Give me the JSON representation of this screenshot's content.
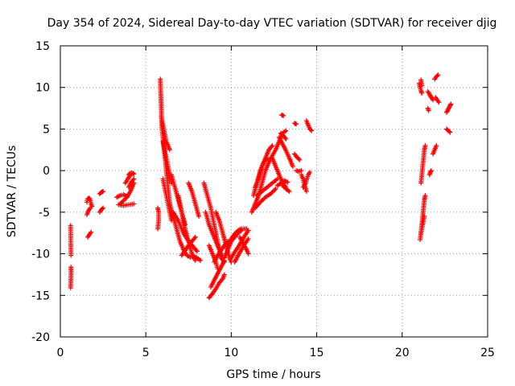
{
  "chart_data": {
    "type": "scatter",
    "title": "Day 354 of 2024, Sidereal Day-to-day VTEC variation (SDTVAR) for receiver djig",
    "xlabel": "GPS time / hours",
    "ylabel": "SDTVAR / TECUs",
    "xlim": [
      0,
      25
    ],
    "ylim": [
      -20,
      15
    ],
    "xticks": [
      "0",
      "5",
      "10",
      "15",
      "20",
      "25"
    ],
    "yticks": [
      "15",
      "10",
      "5",
      "0",
      "-5",
      "-10",
      "-15",
      "-20"
    ],
    "xtick_values": [
      0,
      5,
      10,
      15,
      20,
      25
    ],
    "ytick_values": [
      15,
      10,
      5,
      0,
      -5,
      -10,
      -15,
      -20
    ],
    "grid": true,
    "marker": "+",
    "color": "#ff0000",
    "segments": [
      [
        [
          0.6,
          -6.6
        ],
        [
          0.62,
          -10.2
        ]
      ],
      [
        [
          0.62,
          -11.6
        ],
        [
          0.63,
          -12.1
        ],
        [
          0.6,
          -14.1
        ]
      ],
      [
        [
          1.55,
          -3.8
        ],
        [
          1.6,
          -3.4
        ],
        [
          1.7,
          -3.3
        ],
        [
          1.75,
          -3.6
        ],
        [
          1.8,
          -4.0
        ],
        [
          1.85,
          -4.3
        ]
      ],
      [
        [
          1.55,
          -5.3
        ],
        [
          1.65,
          -4.8
        ],
        [
          1.75,
          -4.5
        ]
      ],
      [
        [
          1.6,
          -8.0
        ],
        [
          1.7,
          -7.7
        ],
        [
          1.8,
          -7.4
        ]
      ],
      [
        [
          2.3,
          -2.8
        ],
        [
          2.4,
          -2.6
        ],
        [
          2.5,
          -2.5
        ]
      ],
      [
        [
          2.3,
          -5.0
        ],
        [
          2.4,
          -4.7
        ],
        [
          2.5,
          -4.5
        ]
      ],
      [
        [
          3.3,
          -3.2
        ],
        [
          3.5,
          -3.0
        ],
        [
          3.7,
          -2.9
        ],
        [
          3.9,
          -3.1
        ]
      ],
      [
        [
          3.5,
          -4.0
        ],
        [
          3.7,
          -3.6
        ],
        [
          3.9,
          -3.2
        ],
        [
          4.1,
          -2.5
        ],
        [
          4.3,
          -1.5
        ]
      ],
      [
        [
          3.8,
          -1.5
        ],
        [
          3.95,
          -1.0
        ],
        [
          4.1,
          -0.5
        ],
        [
          4.3,
          -0.4
        ]
      ],
      [
        [
          3.4,
          -4.1
        ],
        [
          3.7,
          -4.2
        ],
        [
          4.0,
          -4.1
        ],
        [
          4.3,
          -4.0
        ]
      ],
      [
        [
          4.0,
          -0.5
        ],
        [
          4.1,
          -0.3
        ],
        [
          4.25,
          -0.3
        ]
      ],
      [
        [
          4.0,
          -2.0
        ],
        [
          4.15,
          -1.4
        ],
        [
          4.3,
          -1.0
        ]
      ],
      [
        [
          5.7,
          -4.5
        ],
        [
          5.75,
          -5.0
        ],
        [
          5.75,
          -6.0
        ],
        [
          5.7,
          -7.0
        ]
      ],
      [
        [
          5.85,
          11.0
        ],
        [
          5.87,
          9.5
        ],
        [
          5.9,
          8.0
        ],
        [
          5.92,
          6.5
        ],
        [
          5.95,
          5.0
        ],
        [
          6.0,
          4.0
        ],
        [
          6.05,
          3.0
        ],
        [
          6.1,
          2.0
        ],
        [
          6.15,
          1.0
        ],
        [
          6.2,
          0.0
        ],
        [
          6.25,
          -1.0
        ],
        [
          6.3,
          -2.0
        ],
        [
          6.35,
          -3.0
        ],
        [
          6.4,
          -4.0
        ]
      ],
      [
        [
          5.9,
          6.5
        ],
        [
          6.0,
          5.5
        ],
        [
          6.1,
          4.5
        ],
        [
          6.2,
          3.5
        ],
        [
          6.3,
          3.0
        ],
        [
          6.4,
          2.5
        ]
      ],
      [
        [
          6.0,
          3.5
        ],
        [
          6.1,
          2.5
        ],
        [
          6.2,
          1.5
        ],
        [
          6.3,
          0.5
        ],
        [
          6.4,
          -0.5
        ],
        [
          6.5,
          -1.5
        ]
      ],
      [
        [
          6.0,
          -1.0
        ],
        [
          6.1,
          -2.0
        ],
        [
          6.2,
          -3.0
        ],
        [
          6.3,
          -4.0
        ],
        [
          6.4,
          -5.0
        ],
        [
          6.5,
          -6.0
        ]
      ],
      [
        [
          6.4,
          -4.0
        ],
        [
          6.6,
          -5.5
        ],
        [
          6.8,
          -7.0
        ],
        [
          7.0,
          -8.5
        ],
        [
          7.2,
          -9.5
        ],
        [
          7.4,
          -10.2
        ],
        [
          7.6,
          -10.4
        ],
        [
          7.8,
          -10.3
        ],
        [
          8.0,
          -10.5
        ],
        [
          8.2,
          -10.8
        ]
      ],
      [
        [
          6.6,
          -5.0
        ],
        [
          6.9,
          -6.0
        ],
        [
          7.2,
          -7.5
        ],
        [
          7.5,
          -8.5
        ],
        [
          7.8,
          -9.2
        ],
        [
          8.0,
          -9.7
        ]
      ],
      [
        [
          6.9,
          -3.0
        ],
        [
          7.1,
          -5.0
        ],
        [
          7.3,
          -7.0
        ],
        [
          7.5,
          -8.5
        ],
        [
          7.7,
          -10.0
        ],
        [
          7.9,
          -10.8
        ]
      ],
      [
        [
          7.1,
          -10.2
        ],
        [
          7.3,
          -9.6
        ],
        [
          7.5,
          -9.0
        ],
        [
          7.7,
          -8.5
        ],
        [
          7.9,
          -8.0
        ]
      ],
      [
        [
          6.5,
          -0.5
        ],
        [
          6.7,
          -2.0
        ],
        [
          6.9,
          -3.5
        ],
        [
          7.1,
          -5.0
        ],
        [
          7.3,
          -6.5
        ]
      ],
      [
        [
          7.5,
          -1.5
        ],
        [
          7.7,
          -2.5
        ],
        [
          7.9,
          -4.0
        ],
        [
          8.1,
          -5.5
        ]
      ],
      [
        [
          8.4,
          -1.5
        ],
        [
          8.6,
          -3.0
        ],
        [
          8.8,
          -4.5
        ],
        [
          9.0,
          -6.5
        ],
        [
          9.2,
          -8.5
        ],
        [
          9.4,
          -10.5
        ],
        [
          9.6,
          -11.0
        ]
      ],
      [
        [
          8.5,
          -5.0
        ],
        [
          8.7,
          -6.5
        ],
        [
          8.9,
          -7.5
        ],
        [
          9.1,
          -8.5
        ],
        [
          9.3,
          -9.5
        ],
        [
          9.5,
          -10.5
        ]
      ],
      [
        [
          8.7,
          -9.0
        ],
        [
          8.9,
          -10.0
        ],
        [
          9.1,
          -11.0
        ],
        [
          9.2,
          -11.8
        ]
      ],
      [
        [
          8.7,
          -15.3
        ],
        [
          8.9,
          -14.8
        ],
        [
          9.1,
          -14.2
        ],
        [
          9.3,
          -13.5
        ],
        [
          9.5,
          -13.0
        ],
        [
          9.6,
          -12.5
        ]
      ],
      [
        [
          8.8,
          -14.0
        ],
        [
          9.0,
          -13.2
        ],
        [
          9.2,
          -12.4
        ],
        [
          9.4,
          -11.6
        ],
        [
          9.6,
          -10.8
        ]
      ],
      [
        [
          9.0,
          -11.0
        ],
        [
          9.2,
          -10.2
        ],
        [
          9.4,
          -9.6
        ],
        [
          9.6,
          -9.0
        ],
        [
          9.8,
          -8.5
        ]
      ],
      [
        [
          9.1,
          -5.0
        ],
        [
          9.3,
          -6.0
        ],
        [
          9.5,
          -7.5
        ],
        [
          9.7,
          -9.0
        ],
        [
          9.9,
          -10.5
        ],
        [
          10.0,
          -11.0
        ]
      ],
      [
        [
          9.6,
          -10.5
        ],
        [
          9.8,
          -9.5
        ],
        [
          10.0,
          -8.5
        ],
        [
          10.2,
          -8.0
        ],
        [
          10.4,
          -7.5
        ],
        [
          10.6,
          -7.2
        ]
      ],
      [
        [
          9.8,
          -9.0
        ],
        [
          10.0,
          -8.2
        ],
        [
          10.2,
          -7.6
        ],
        [
          10.4,
          -7.2
        ],
        [
          10.6,
          -7.0
        ],
        [
          10.9,
          -7.0
        ]
      ],
      [
        [
          10.0,
          -10.5
        ],
        [
          10.2,
          -9.8
        ],
        [
          10.4,
          -9.2
        ],
        [
          10.6,
          -8.5
        ],
        [
          10.8,
          -7.8
        ],
        [
          11.0,
          -7.2
        ]
      ],
      [
        [
          10.2,
          -11.0
        ],
        [
          10.4,
          -10.2
        ],
        [
          10.6,
          -9.5
        ],
        [
          10.8,
          -8.8
        ],
        [
          11.0,
          -8.2
        ]
      ],
      [
        [
          10.5,
          -8.0
        ],
        [
          10.7,
          -8.8
        ],
        [
          10.9,
          -9.5
        ],
        [
          11.0,
          -10.0
        ]
      ],
      [
        [
          11.2,
          -5.0
        ],
        [
          11.4,
          -4.0
        ],
        [
          11.6,
          -3.0
        ],
        [
          11.8,
          -1.5
        ],
        [
          12.0,
          0.0
        ],
        [
          12.2,
          1.0
        ],
        [
          12.4,
          1.8
        ],
        [
          12.6,
          2.5
        ],
        [
          12.8,
          3.5
        ],
        [
          13.0,
          4.5
        ],
        [
          13.2,
          4.8
        ]
      ],
      [
        [
          11.3,
          -3.0
        ],
        [
          11.5,
          -1.5
        ],
        [
          11.7,
          0.0
        ],
        [
          11.9,
          1.0
        ],
        [
          12.1,
          1.5
        ]
      ],
      [
        [
          11.4,
          -2.0
        ],
        [
          11.6,
          -1.0
        ],
        [
          11.8,
          0.5
        ],
        [
          12.0,
          1.5
        ],
        [
          12.2,
          2.5
        ],
        [
          12.4,
          3.0
        ]
      ],
      [
        [
          11.4,
          -4.5
        ],
        [
          11.7,
          -3.8
        ],
        [
          12.0,
          -3.2
        ],
        [
          12.3,
          -2.8
        ],
        [
          12.6,
          -2.2
        ]
      ],
      [
        [
          11.5,
          -3.0
        ],
        [
          11.8,
          -2.5
        ],
        [
          12.1,
          -2.0
        ],
        [
          12.4,
          -1.5
        ],
        [
          12.7,
          -1.0
        ]
      ],
      [
        [
          12.4,
          1.5
        ],
        [
          12.6,
          0.5
        ],
        [
          12.8,
          -0.5
        ],
        [
          13.0,
          -1.5
        ],
        [
          13.2,
          -2.0
        ]
      ],
      [
        [
          12.8,
          4.0
        ],
        [
          13.0,
          3.2
        ],
        [
          13.2,
          2.4
        ],
        [
          13.4,
          1.5
        ],
        [
          13.6,
          0.5
        ]
      ],
      [
        [
          12.9,
          4.5
        ],
        [
          13.05,
          4.2
        ],
        [
          13.2,
          3.8
        ]
      ],
      [
        [
          12.95,
          6.7
        ],
        [
          13.05,
          6.6
        ]
      ],
      [
        [
          12.7,
          -1.8
        ],
        [
          12.9,
          -1.5
        ],
        [
          13.1,
          -1.2
        ],
        [
          13.3,
          -1.4
        ]
      ],
      [
        [
          13.0,
          -1.8
        ],
        [
          13.2,
          -2.2
        ],
        [
          13.4,
          -2.5
        ]
      ],
      [
        [
          13.7,
          5.7
        ],
        [
          13.8,
          5.6
        ]
      ],
      [
        [
          13.7,
          2.0
        ],
        [
          13.85,
          1.6
        ],
        [
          14.0,
          1.3
        ]
      ],
      [
        [
          13.8,
          0.0
        ],
        [
          13.95,
          -0.1
        ],
        [
          14.1,
          0.0
        ]
      ],
      [
        [
          14.1,
          -0.5
        ],
        [
          14.2,
          -1.0
        ],
        [
          14.3,
          -1.8
        ],
        [
          14.4,
          -2.5
        ]
      ],
      [
        [
          14.2,
          -2.0
        ],
        [
          14.35,
          -1.5
        ],
        [
          14.5,
          -0.5
        ],
        [
          14.6,
          -0.2
        ]
      ],
      [
        [
          14.4,
          6.0
        ],
        [
          14.5,
          5.5
        ],
        [
          14.6,
          5.0
        ],
        [
          14.7,
          4.8
        ]
      ],
      [
        [
          21.0,
          10.5
        ],
        [
          21.05,
          10.0
        ],
        [
          21.1,
          9.6
        ],
        [
          21.15,
          9.3
        ]
      ],
      [
        [
          21.1,
          10.9
        ],
        [
          21.15,
          10.2
        ]
      ],
      [
        [
          21.05,
          -8.3
        ],
        [
          21.1,
          -7.5
        ],
        [
          21.15,
          -6.5
        ],
        [
          21.2,
          -5.5
        ],
        [
          21.25,
          -4.5
        ],
        [
          21.3,
          -3.5
        ],
        [
          21.35,
          -3.0
        ]
      ],
      [
        [
          21.1,
          -1.5
        ],
        [
          21.15,
          -0.5
        ],
        [
          21.2,
          0.5
        ],
        [
          21.25,
          1.5
        ],
        [
          21.3,
          2.5
        ],
        [
          21.35,
          3.0
        ]
      ],
      [
        [
          21.1,
          -7.5
        ],
        [
          21.2,
          -6.5
        ],
        [
          21.3,
          -5.5
        ]
      ],
      [
        [
          21.5,
          9.5
        ],
        [
          21.6,
          9.2
        ],
        [
          21.7,
          8.8
        ],
        [
          21.8,
          8.5
        ]
      ],
      [
        [
          21.5,
          7.5
        ],
        [
          21.55,
          7.2
        ]
      ],
      [
        [
          21.6,
          -0.5
        ],
        [
          21.65,
          -0.2
        ],
        [
          21.7,
          0.0
        ]
      ],
      [
        [
          21.8,
          2.0
        ],
        [
          21.9,
          2.5
        ],
        [
          22.0,
          3.0
        ]
      ],
      [
        [
          21.9,
          11.0
        ],
        [
          22.0,
          11.3
        ],
        [
          22.1,
          11.5
        ]
      ],
      [
        [
          21.95,
          8.8
        ],
        [
          22.05,
          8.5
        ],
        [
          22.15,
          8.2
        ]
      ],
      [
        [
          22.6,
          7.0
        ],
        [
          22.7,
          7.4
        ],
        [
          22.8,
          7.8
        ],
        [
          22.85,
          8.0
        ]
      ],
      [
        [
          22.6,
          5.0
        ],
        [
          22.7,
          4.8
        ],
        [
          22.8,
          4.6
        ]
      ]
    ]
  }
}
